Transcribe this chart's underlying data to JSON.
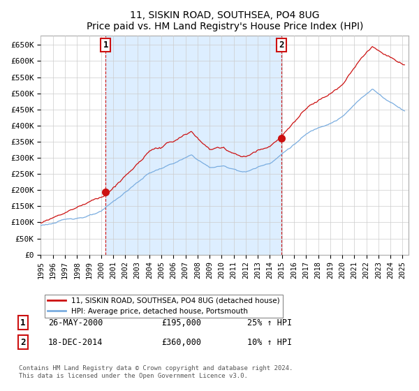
{
  "title": "11, SISKIN ROAD, SOUTHSEA, PO4 8UG",
  "subtitle": "Price paid vs. HM Land Registry's House Price Index (HPI)",
  "ylabel_ticks": [
    "£0",
    "£50K",
    "£100K",
    "£150K",
    "£200K",
    "£250K",
    "£300K",
    "£350K",
    "£400K",
    "£450K",
    "£500K",
    "£550K",
    "£600K",
    "£650K"
  ],
  "ytick_values": [
    0,
    50000,
    100000,
    150000,
    200000,
    250000,
    300000,
    350000,
    400000,
    450000,
    500000,
    550000,
    600000,
    650000
  ],
  "ylim": [
    0,
    680000
  ],
  "xlim_start": 1995.0,
  "xlim_end": 2025.5,
  "hpi_line_color": "#7aade0",
  "price_line_color": "#cc1111",
  "marker1_year": 2000.38,
  "marker1_price": 195000,
  "marker2_year": 2014.96,
  "marker2_price": 360000,
  "legend_label_red": "11, SISKIN ROAD, SOUTHSEA, PO4 8UG (detached house)",
  "legend_label_blue": "HPI: Average price, detached house, Portsmouth",
  "annotation1_date": "26-MAY-2000",
  "annotation1_price": "£195,000",
  "annotation1_hpi": "25% ↑ HPI",
  "annotation2_date": "18-DEC-2014",
  "annotation2_price": "£360,000",
  "annotation2_hpi": "10% ↑ HPI",
  "footer": "Contains HM Land Registry data © Crown copyright and database right 2024.\nThis data is licensed under the Open Government Licence v3.0.",
  "background_color": "#ffffff",
  "grid_color": "#cccccc",
  "shade_color": "#ddeeff"
}
